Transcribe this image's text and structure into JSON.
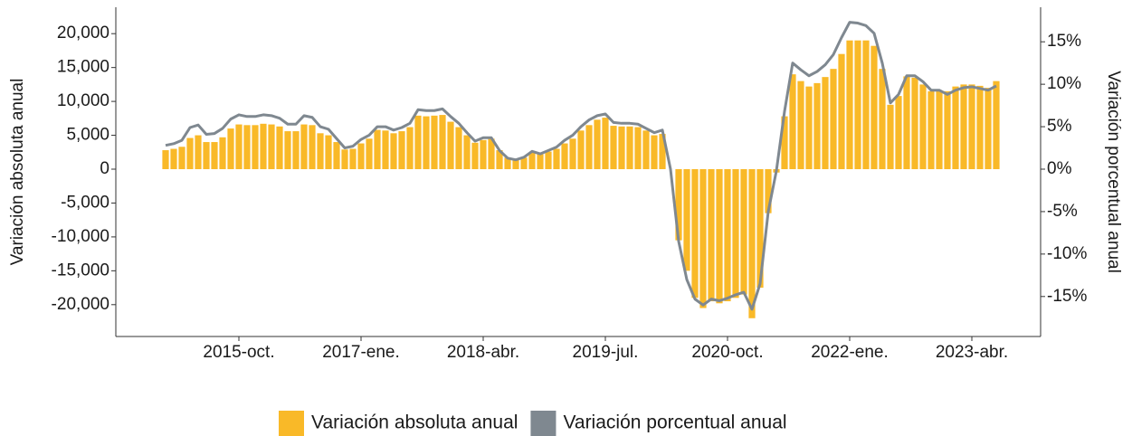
{
  "chart_data": {
    "type": "bar",
    "categories": [
      null,
      null,
      null,
      null,
      null,
      null,
      null,
      null,
      null,
      "2015-oct.",
      null,
      null,
      null,
      null,
      null,
      null,
      null,
      null,
      null,
      null,
      null,
      null,
      null,
      null,
      "2017-ene.",
      null,
      null,
      null,
      null,
      null,
      null,
      null,
      null,
      null,
      null,
      null,
      null,
      null,
      null,
      "2018-abr.",
      null,
      null,
      null,
      null,
      null,
      null,
      null,
      null,
      null,
      null,
      null,
      null,
      null,
      null,
      "2019-jul.",
      null,
      null,
      null,
      null,
      null,
      null,
      null,
      null,
      null,
      null,
      null,
      null,
      null,
      null,
      "2020-oct.",
      null,
      null,
      null,
      null,
      null,
      null,
      null,
      null,
      null,
      null,
      null,
      null,
      null,
      null,
      "2022-ene.",
      null,
      null,
      null,
      null,
      null,
      null,
      null,
      null,
      null,
      null,
      null,
      null,
      null,
      null,
      "2023-abr.",
      null,
      null,
      null
    ],
    "series": [
      {
        "name": "Variación absoluta anual",
        "type": "bar",
        "color": "#f9b928",
        "values": [
          2800,
          3000,
          3300,
          4600,
          5000,
          4000,
          4000,
          4700,
          6000,
          6600,
          6500,
          6500,
          6700,
          6600,
          6300,
          5600,
          5600,
          6600,
          6500,
          5300,
          5000,
          4000,
          2900,
          3000,
          3800,
          4500,
          5800,
          5700,
          5300,
          5600,
          6200,
          7900,
          7800,
          7900,
          8000,
          7000,
          6200,
          5000,
          3900,
          4300,
          4500,
          2800,
          1700,
          1500,
          1700,
          2500,
          2200,
          2600,
          3000,
          3800,
          4500,
          5700,
          6500,
          7300,
          7600,
          6400,
          6300,
          6300,
          6200,
          5700,
          5000,
          5200,
          0,
          -10500,
          -15000,
          -19000,
          -20500,
          -19500,
          -19800,
          -19500,
          -19000,
          -18500,
          -22000,
          -17500,
          -6500,
          -500,
          7800,
          14000,
          13000,
          12200,
          12700,
          13600,
          14800,
          17000,
          19000,
          19000,
          19000,
          18200,
          14800,
          9500,
          10800,
          13700,
          13500,
          12500,
          11500,
          11500,
          11500,
          12200,
          12500,
          12500,
          12300,
          12000,
          13000
        ]
      },
      {
        "name": "Variación porcentual anual",
        "type": "line",
        "axis": "y2",
        "color": "#7f8890",
        "values": [
          2.8,
          3.0,
          3.4,
          4.9,
          5.2,
          4.1,
          4.2,
          4.8,
          5.9,
          6.4,
          6.2,
          6.2,
          6.4,
          6.3,
          6.0,
          5.3,
          5.3,
          6.3,
          6.1,
          5.0,
          4.7,
          3.6,
          2.5,
          2.7,
          3.5,
          4.0,
          5.0,
          5.0,
          4.6,
          4.9,
          5.4,
          7.0,
          6.9,
          6.9,
          7.1,
          6.2,
          5.4,
          4.3,
          3.3,
          3.7,
          3.7,
          2.2,
          1.3,
          1.1,
          1.4,
          2.1,
          1.8,
          2.2,
          2.6,
          3.4,
          4.0,
          5.0,
          5.8,
          6.3,
          6.5,
          5.5,
          5.4,
          5.4,
          5.3,
          4.8,
          4.3,
          4.6,
          0.0,
          -8.5,
          -13.0,
          -15.3,
          -16.0,
          -15.3,
          -15.5,
          -15.2,
          -14.8,
          -14.5,
          -16.5,
          -13.5,
          -5.0,
          -0.2,
          6.8,
          12.5,
          11.7,
          11.0,
          11.5,
          12.3,
          13.5,
          15.5,
          17.3,
          17.2,
          16.9,
          16.0,
          12.5,
          7.8,
          8.8,
          11.0,
          11.0,
          10.3,
          9.3,
          9.3,
          8.8,
          9.3,
          9.6,
          9.7,
          9.5,
          9.3,
          9.8
        ]
      }
    ],
    "y_label": "Variación absoluta anual",
    "y2_label": "Variación porcentual anual",
    "ylim": [
      -24700,
      23900
    ],
    "yticks": [
      {
        "value": -20000,
        "label": "-20,000"
      },
      {
        "value": -15000,
        "label": "-15,000"
      },
      {
        "value": -10000,
        "label": "-10,000"
      },
      {
        "value": -5000,
        "label": "-5,000"
      },
      0,
      {
        "value": 5000,
        "label": "5,000"
      },
      {
        "value": 10000,
        "label": "10,000"
      },
      {
        "value": 15000,
        "label": "15,000"
      },
      {
        "value": 20000,
        "label": "20,000"
      }
    ],
    "y2lim": [
      -19.71,
      19.07
    ],
    "y2ticks": [
      {
        "value": -15,
        "label": "-15%"
      },
      {
        "value": -10,
        "label": "-10%"
      },
      {
        "value": -5,
        "label": "-5%"
      },
      {
        "value": 0,
        "label": "0%"
      },
      {
        "value": 5,
        "label": "5%"
      },
      {
        "value": 10,
        "label": "10%"
      },
      {
        "value": 15,
        "label": "15%"
      }
    ],
    "legend": "bottom"
  }
}
